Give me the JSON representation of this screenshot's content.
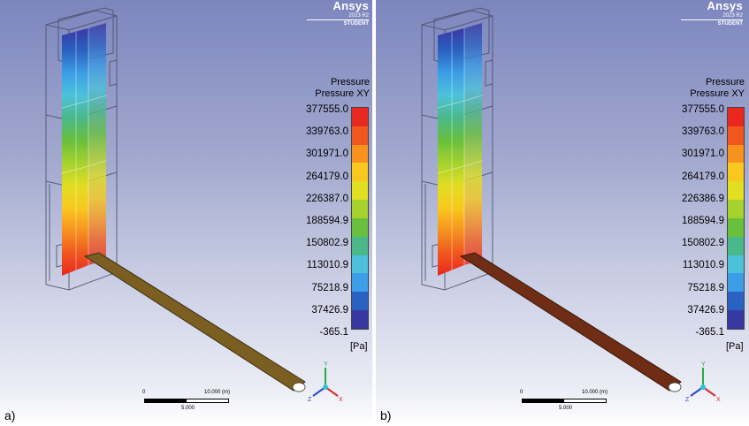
{
  "brand": {
    "name": "Ansys",
    "version": "2023 R2",
    "edition": "STUDENT"
  },
  "legend": {
    "title": "Pressure",
    "subtitle": "Pressure XY",
    "unit": "[Pa]",
    "colors": [
      "#e8281e",
      "#f0561e",
      "#f7921e",
      "#f8c81e",
      "#e2de22",
      "#a6d22e",
      "#68c03c",
      "#4ab888",
      "#4cc2da",
      "#3c9ee6",
      "#2a62c2",
      "#3838a2"
    ]
  },
  "axis_labels": {
    "x": "X",
    "y": "Y",
    "z": "Z"
  },
  "scale": {
    "start": "0",
    "end": "10.000 (m)",
    "mid": "5.000"
  },
  "panels": [
    {
      "label": "a)",
      "ticks": [
        "377555.0",
        "339763.0",
        "301971.0",
        "264179.0",
        "226387.0",
        "188594.9",
        "150802.9",
        "113010.9",
        "75218.9",
        "37426.9",
        "-365.1"
      ],
      "pipe_color": "#7a5e22",
      "pipe_edge": "#3e2f0c"
    },
    {
      "label": "b)",
      "ticks": [
        "377555.0",
        "339763.0",
        "301971.0",
        "264179.0",
        "226386.9",
        "188594.9",
        "150802.9",
        "113010.9",
        "75218.9",
        "37426.9",
        "-365.1"
      ],
      "pipe_color": "#6e2d14",
      "pipe_edge": "#3a1508"
    }
  ],
  "chart_data": [
    {
      "type": "heatmap",
      "title": "Pressure",
      "subtitle": "Pressure XY",
      "unit": "[Pa]",
      "range": [
        -365.1,
        377555.0
      ],
      "colorbar_ticks": [
        377555.0,
        339763.0,
        301971.0,
        264179.0,
        226387.0,
        188594.9,
        150802.9,
        113010.9,
        75218.9,
        37426.9,
        -365.1
      ],
      "panel": "a)"
    },
    {
      "type": "heatmap",
      "title": "Pressure",
      "subtitle": "Pressure XY",
      "unit": "[Pa]",
      "range": [
        -365.1,
        377555.0
      ],
      "colorbar_ticks": [
        377555.0,
        339763.0,
        301971.0,
        264179.0,
        226386.9,
        188594.9,
        150802.9,
        113010.9,
        75218.9,
        37426.9,
        -365.1
      ],
      "panel": "b)"
    }
  ]
}
